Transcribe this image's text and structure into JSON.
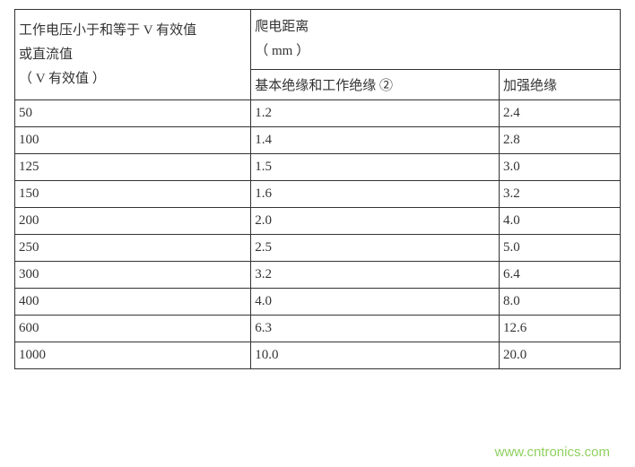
{
  "table": {
    "header": {
      "left_line1": "工作电压小于和等于 V 有效值",
      "left_line2": "或直流值",
      "left_line3": "（ V 有效值 ）",
      "right_line1": "爬电距离",
      "right_line2": "（ mm ）",
      "sub_basic": "基本绝缘和工作绝缘 ②",
      "sub_reinforced": "加强绝缘"
    },
    "rows": [
      {
        "voltage": "50",
        "basic": "1.2",
        "reinforced": "2.4"
      },
      {
        "voltage": "100",
        "basic": "1.4",
        "reinforced": "2.8"
      },
      {
        "voltage": "125",
        "basic": "1.5",
        "reinforced": "3.0"
      },
      {
        "voltage": "150",
        "basic": "1.6",
        "reinforced": "3.2"
      },
      {
        "voltage": "200",
        "basic": "2.0",
        "reinforced": "4.0"
      },
      {
        "voltage": "250",
        "basic": "2.5",
        "reinforced": "5.0"
      },
      {
        "voltage": "300",
        "basic": "3.2",
        "reinforced": "6.4"
      },
      {
        "voltage": "400",
        "basic": "4.0",
        "reinforced": "8.0"
      },
      {
        "voltage": "600",
        "basic": "6.3",
        "reinforced": "12.6"
      },
      {
        "voltage": "1000",
        "basic": "10.0",
        "reinforced": "20.0"
      }
    ],
    "border_color": "#333333",
    "text_color": "#333333",
    "background_color": "#ffffff",
    "font_size": 15
  },
  "watermark": {
    "text": "www.cntronics.com",
    "color": "#7bc943",
    "font_size": 15
  }
}
